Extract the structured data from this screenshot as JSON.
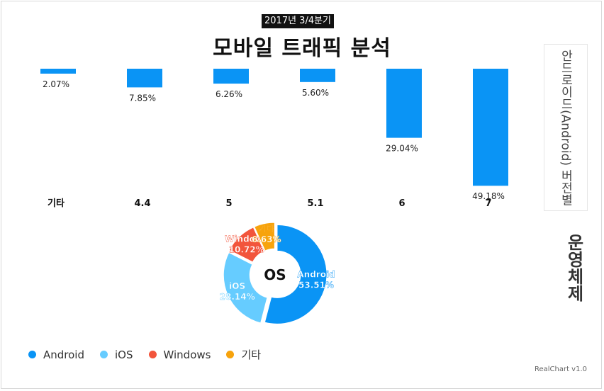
{
  "chart_data": [
    {
      "type": "bar",
      "orientation": "vertical-inverted",
      "title": "",
      "side_title": "안드로이드(Android) 버전별",
      "categories": [
        "기타",
        "4.4",
        "5",
        "5.1",
        "6",
        "7"
      ],
      "series": [
        {
          "values": [
            2.07,
            7.85,
            6.26,
            5.6,
            29.04,
            49.18
          ]
        }
      ],
      "value_labels": [
        "2.07%",
        "7.85%",
        "6.26%",
        "5.60%",
        "29.04%",
        "49.18%"
      ],
      "ylim": [
        0,
        50
      ],
      "color": "#0a94f5",
      "grid": false
    },
    {
      "type": "pie",
      "variant": "donut",
      "center_label": "OS",
      "side_title": "운영체제",
      "slices": [
        {
          "name": "Android",
          "value": 53.51,
          "label": "53.51%",
          "color": "#0a94f5"
        },
        {
          "name": "iOS",
          "value": 28.14,
          "label": "28.14%",
          "color": "#66ccff"
        },
        {
          "name": "Windows",
          "value": 10.72,
          "label": "10.72%",
          "color": "#f2553c"
        },
        {
          "name": "기타",
          "value": 6.63,
          "label": "6.63%",
          "color": "#f7a30c"
        }
      ]
    }
  ],
  "page": {
    "subtitle": "2017년 3/4분기",
    "title": "모바일 트래픽 분석",
    "legend": [
      {
        "name": "Android",
        "color": "#0a94f5"
      },
      {
        "name": "iOS",
        "color": "#66ccff"
      },
      {
        "name": "Windows",
        "color": "#f2553c"
      },
      {
        "name": "기타",
        "color": "#f7a30c"
      }
    ],
    "credit": "RealChart v1.0"
  }
}
